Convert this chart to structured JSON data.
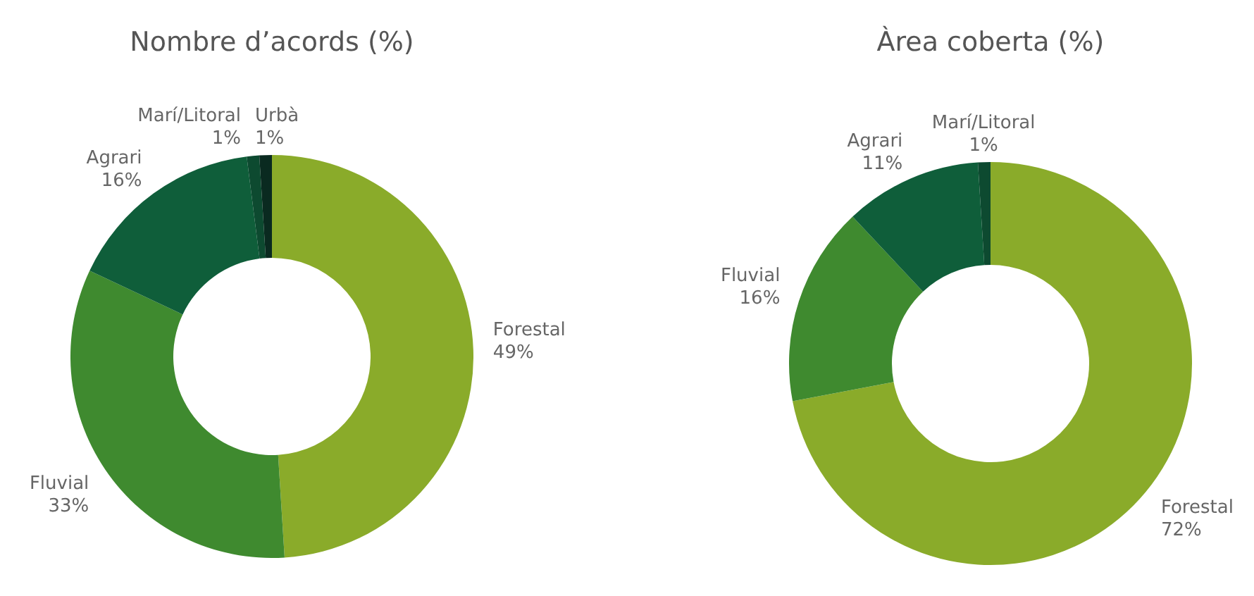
{
  "chart_data": [
    {
      "type": "donut",
      "title": "Nombre d’acords (%)",
      "categories": [
        "Forestal",
        "Fluvial",
        "Agrari",
        "Marí/Litoral",
        "Urbà"
      ],
      "values": [
        49,
        33,
        16,
        1,
        1
      ],
      "value_labels": [
        "49%",
        "33%",
        "16%",
        "1%",
        "1%"
      ],
      "colors": [
        "#8aab2a",
        "#3f8a2f",
        "#0f5e3a",
        "#0d4a30",
        "#0a2a20"
      ]
    },
    {
      "type": "donut",
      "title": "Àrea coberta (%)",
      "categories": [
        "Forestal",
        "Fluvial",
        "Agrari",
        "Marí/Litoral"
      ],
      "values": [
        72,
        16,
        11,
        1
      ],
      "value_labels": [
        "72%",
        "16%",
        "11%",
        "1%"
      ],
      "colors": [
        "#8aab2a",
        "#3f8a2f",
        "#0f5e3a",
        "#0d4a30"
      ]
    }
  ]
}
